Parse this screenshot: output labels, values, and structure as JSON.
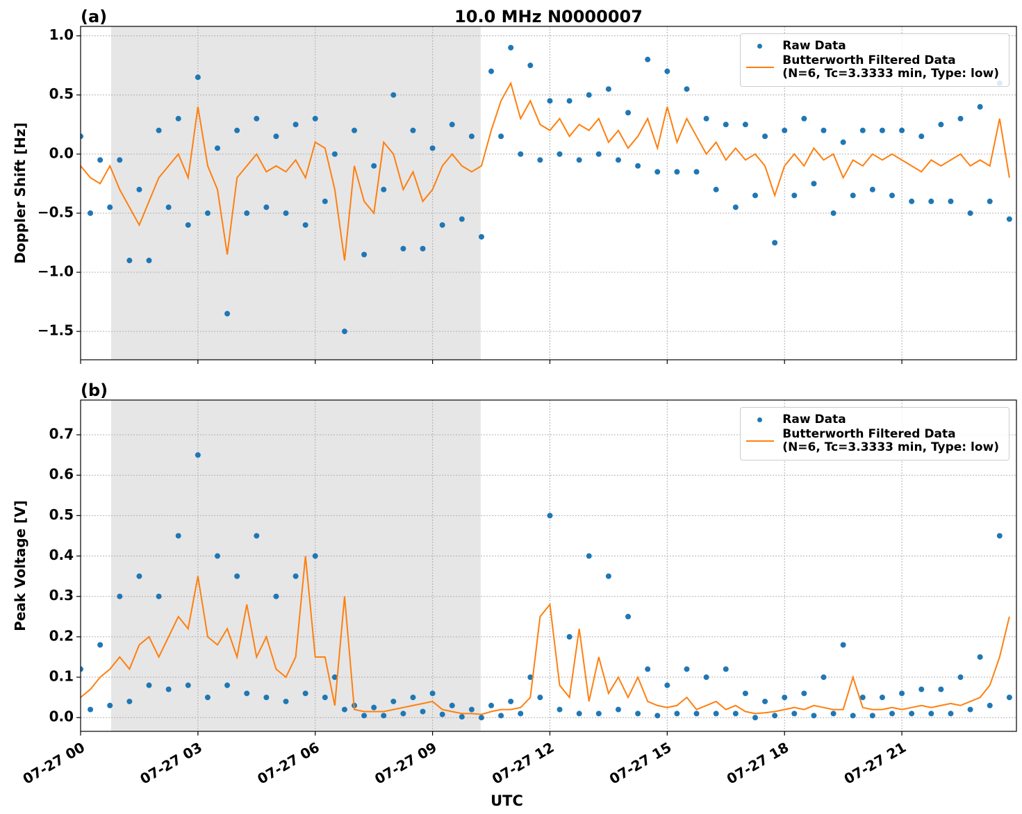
{
  "chart_data": [
    {
      "type": "line",
      "panel_label": "(a)",
      "title": "10.0 MHz N0000007",
      "ylabel": "Doppler Shift [Hz]",
      "xlim": [
        0,
        23.93
      ],
      "ylim": [
        -1.74,
        1.08
      ],
      "grid": true,
      "shade": [
        0.78,
        10.23
      ],
      "legend": "upper right",
      "xticks": [
        {
          "value": 0,
          "label": "07-27 00"
        },
        {
          "value": 3,
          "label": "07-27 03"
        },
        {
          "value": 6,
          "label": "07-27 06"
        },
        {
          "value": 9,
          "label": "07-27 09"
        },
        {
          "value": 12,
          "label": "07-27 12"
        },
        {
          "value": 15,
          "label": "07-27 15"
        },
        {
          "value": 18,
          "label": "07-27 18"
        },
        {
          "value": 21,
          "label": "07-27 21"
        }
      ],
      "yticks": [
        {
          "value": -1.5,
          "label": "−1.5"
        },
        {
          "value": -1.0,
          "label": "−1.0"
        },
        {
          "value": -0.5,
          "label": "−0.5"
        },
        {
          "value": 0,
          "label": "0.0"
        },
        0.5,
        {
          "value": 1.0,
          "label": "1.0"
        }
      ],
      "x": [
        0,
        0.25,
        0.5,
        0.75,
        1,
        1.25,
        1.5,
        1.75,
        2,
        2.25,
        2.5,
        2.75,
        3,
        3.25,
        3.5,
        3.75,
        4,
        4.25,
        4.5,
        4.75,
        5,
        5.25,
        5.5,
        5.75,
        6,
        6.25,
        6.5,
        6.75,
        7,
        7.25,
        7.5,
        7.75,
        8,
        8.25,
        8.5,
        8.75,
        9,
        9.25,
        9.5,
        9.75,
        10,
        10.25,
        10.5,
        10.75,
        11,
        11.25,
        11.5,
        11.75,
        12,
        12.25,
        12.5,
        12.75,
        13,
        13.25,
        13.5,
        13.75,
        14,
        14.25,
        14.5,
        14.75,
        15,
        15.25,
        15.5,
        15.75,
        16,
        16.25,
        16.5,
        16.75,
        17,
        17.25,
        17.5,
        17.75,
        18,
        18.25,
        18.5,
        18.75,
        19,
        19.25,
        19.5,
        19.75,
        20,
        20.25,
        20.5,
        20.75,
        21,
        21.25,
        21.5,
        21.75,
        22,
        22.25,
        22.5,
        22.75,
        23,
        23.25,
        23.5,
        23.75
      ],
      "series": [
        {
          "name": "Raw Data",
          "color": "#1f77b4",
          "marker": true,
          "values": [
            0.15,
            -0.5,
            -0.05,
            -0.45,
            -0.05,
            -0.9,
            -0.3,
            -0.9,
            0.2,
            -0.45,
            0.3,
            -0.6,
            0.65,
            -0.5,
            0.05,
            -1.35,
            0.2,
            -0.5,
            0.3,
            -0.45,
            0.15,
            -0.5,
            0.25,
            -0.6,
            0.3,
            -0.4,
            0.0,
            -1.5,
            0.2,
            -0.85,
            -0.1,
            -0.3,
            0.5,
            -0.8,
            0.2,
            -0.8,
            0.05,
            -0.6,
            0.25,
            -0.55,
            0.15,
            -0.7,
            0.7,
            0.15,
            0.9,
            0.0,
            0.75,
            -0.05,
            0.45,
            0.0,
            0.45,
            -0.05,
            0.5,
            0.0,
            0.55,
            -0.05,
            0.35,
            -0.1,
            0.8,
            -0.15,
            0.7,
            -0.15,
            0.55,
            -0.15,
            0.3,
            -0.3,
            0.25,
            -0.45,
            0.25,
            -0.35,
            0.15,
            -0.75,
            0.2,
            -0.35,
            0.3,
            -0.25,
            0.2,
            -0.5,
            0.1,
            -0.35,
            0.2,
            -0.3,
            0.2,
            -0.35,
            0.2,
            -0.4,
            0.15,
            -0.4,
            0.25,
            -0.4,
            0.3,
            -0.5,
            0.4,
            -0.4,
            0.6,
            -0.55
          ]
        },
        {
          "name": "Butterworth Filtered Data\n(N=6, Tc=3.3333 min, Type: low)",
          "color": "#ff7f0e",
          "marker": false,
          "values": [
            -0.1,
            -0.2,
            -0.25,
            -0.1,
            -0.3,
            -0.45,
            -0.6,
            -0.4,
            -0.2,
            -0.1,
            0.0,
            -0.2,
            0.4,
            -0.1,
            -0.3,
            -0.85,
            -0.2,
            -0.1,
            0.0,
            -0.15,
            -0.1,
            -0.15,
            -0.05,
            -0.2,
            0.1,
            0.05,
            -0.3,
            -0.9,
            -0.1,
            -0.4,
            -0.5,
            0.1,
            0.0,
            -0.3,
            -0.15,
            -0.4,
            -0.3,
            -0.1,
            0.0,
            -0.1,
            -0.15,
            -0.1,
            0.2,
            0.45,
            0.6,
            0.3,
            0.45,
            0.25,
            0.2,
            0.3,
            0.15,
            0.25,
            0.2,
            0.3,
            0.1,
            0.2,
            0.05,
            0.15,
            0.3,
            0.05,
            0.4,
            0.1,
            0.3,
            0.15,
            0.0,
            0.1,
            -0.05,
            0.05,
            -0.05,
            0.0,
            -0.1,
            -0.35,
            -0.1,
            0.0,
            -0.1,
            0.05,
            -0.05,
            0.0,
            -0.2,
            -0.05,
            -0.1,
            0.0,
            -0.05,
            0.0,
            -0.05,
            -0.1,
            -0.15,
            -0.05,
            -0.1,
            -0.05,
            0.0,
            -0.1,
            -0.05,
            -0.1,
            0.3,
            -0.2
          ]
        }
      ]
    },
    {
      "type": "line",
      "panel_label": "(b)",
      "ylabel": "Peak Voltage [V]",
      "xlabel": "UTC",
      "xlim": [
        0,
        23.93
      ],
      "ylim": [
        -0.034,
        0.786
      ],
      "grid": true,
      "shade": [
        0.78,
        10.23
      ],
      "legend": "upper right",
      "xticks": [
        {
          "value": 0,
          "label": "07-27 00"
        },
        {
          "value": 3,
          "label": "07-27 03"
        },
        {
          "value": 6,
          "label": "07-27 06"
        },
        {
          "value": 9,
          "label": "07-27 09"
        },
        {
          "value": 12,
          "label": "07-27 12"
        },
        {
          "value": 15,
          "label": "07-27 15"
        },
        {
          "value": 18,
          "label": "07-27 18"
        },
        {
          "value": 21,
          "label": "07-27 21"
        }
      ],
      "yticks": [
        {
          "value": 0,
          "label": "0.0"
        },
        0.1,
        0.2,
        0.3,
        0.4,
        0.5,
        0.6,
        0.7
      ],
      "x": [
        0,
        0.25,
        0.5,
        0.75,
        1,
        1.25,
        1.5,
        1.75,
        2,
        2.25,
        2.5,
        2.75,
        3,
        3.25,
        3.5,
        3.75,
        4,
        4.25,
        4.5,
        4.75,
        5,
        5.25,
        5.5,
        5.75,
        6,
        6.25,
        6.5,
        6.75,
        7,
        7.25,
        7.5,
        7.75,
        8,
        8.25,
        8.5,
        8.75,
        9,
        9.25,
        9.5,
        9.75,
        10,
        10.25,
        10.5,
        10.75,
        11,
        11.25,
        11.5,
        11.75,
        12,
        12.25,
        12.5,
        12.75,
        13,
        13.25,
        13.5,
        13.75,
        14,
        14.25,
        14.5,
        14.75,
        15,
        15.25,
        15.5,
        15.75,
        16,
        16.25,
        16.5,
        16.75,
        17,
        17.25,
        17.5,
        17.75,
        18,
        18.25,
        18.5,
        18.75,
        19,
        19.25,
        19.5,
        19.75,
        20,
        20.25,
        20.5,
        20.75,
        21,
        21.25,
        21.5,
        21.75,
        22,
        22.25,
        22.5,
        22.75,
        23,
        23.25,
        23.5,
        23.75
      ],
      "series": [
        {
          "name": "Raw Data",
          "color": "#1f77b4",
          "marker": true,
          "values": [
            0.12,
            0.02,
            0.18,
            0.03,
            0.3,
            0.04,
            0.35,
            0.08,
            0.3,
            0.07,
            0.45,
            0.08,
            0.65,
            0.05,
            0.4,
            0.08,
            0.35,
            0.06,
            0.45,
            0.05,
            0.3,
            0.04,
            0.35,
            0.06,
            0.4,
            0.05,
            0.1,
            0.02,
            0.03,
            0.005,
            0.025,
            0.005,
            0.04,
            0.01,
            0.05,
            0.015,
            0.06,
            0.008,
            0.03,
            0.002,
            0.02,
            0.0,
            0.03,
            0.005,
            0.04,
            0.01,
            0.1,
            0.05,
            0.5,
            0.02,
            0.2,
            0.01,
            0.4,
            0.01,
            0.35,
            0.02,
            0.25,
            0.01,
            0.12,
            0.005,
            0.08,
            0.01,
            0.12,
            0.01,
            0.1,
            0.01,
            0.12,
            0.01,
            0.06,
            0.0,
            0.04,
            0.005,
            0.05,
            0.01,
            0.06,
            0.005,
            0.1,
            0.01,
            0.18,
            0.005,
            0.05,
            0.005,
            0.05,
            0.01,
            0.06,
            0.01,
            0.07,
            0.01,
            0.07,
            0.01,
            0.1,
            0.02,
            0.15,
            0.03,
            0.45,
            0.05
          ]
        },
        {
          "name": "Butterworth Filtered Data\n(N=6, Tc=3.3333 min, Type: low)",
          "color": "#ff7f0e",
          "marker": false,
          "values": [
            0.05,
            0.07,
            0.1,
            0.12,
            0.15,
            0.12,
            0.18,
            0.2,
            0.15,
            0.2,
            0.25,
            0.22,
            0.35,
            0.2,
            0.18,
            0.22,
            0.15,
            0.28,
            0.15,
            0.2,
            0.12,
            0.1,
            0.15,
            0.4,
            0.15,
            0.15,
            0.03,
            0.3,
            0.02,
            0.015,
            0.015,
            0.015,
            0.02,
            0.025,
            0.03,
            0.035,
            0.04,
            0.02,
            0.015,
            0.01,
            0.01,
            0.008,
            0.015,
            0.02,
            0.02,
            0.025,
            0.05,
            0.25,
            0.28,
            0.08,
            0.05,
            0.22,
            0.04,
            0.15,
            0.06,
            0.1,
            0.05,
            0.1,
            0.04,
            0.03,
            0.025,
            0.03,
            0.05,
            0.02,
            0.03,
            0.04,
            0.02,
            0.03,
            0.015,
            0.01,
            0.012,
            0.015,
            0.02,
            0.025,
            0.02,
            0.03,
            0.025,
            0.02,
            0.02,
            0.1,
            0.025,
            0.02,
            0.02,
            0.025,
            0.02,
            0.025,
            0.03,
            0.025,
            0.03,
            0.035,
            0.03,
            0.04,
            0.05,
            0.08,
            0.15,
            0.25
          ]
        }
      ]
    }
  ]
}
